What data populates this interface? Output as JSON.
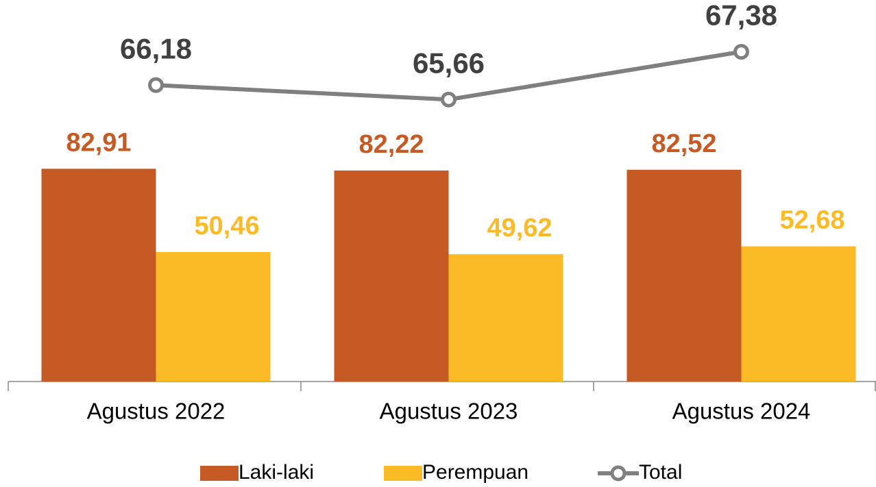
{
  "chart_data": {
    "type": "bar",
    "categories": [
      "Agustus 2022",
      "Agustus 2023",
      "Agustus 2024"
    ],
    "series": [
      {
        "name": "Laki-laki",
        "color": "#c55a24",
        "values": [
          82.91,
          82.22,
          82.52
        ],
        "value_labels": [
          "82,91",
          "82,22",
          "82,52"
        ]
      },
      {
        "name": "Perempuan",
        "color": "#fbbb26",
        "values": [
          50.46,
          49.62,
          52.68
        ],
        "value_labels": [
          "50,46",
          "49,62",
          "52,68"
        ]
      },
      {
        "name": "Total",
        "type": "line",
        "axis": "y2",
        "color": "#7f7f7f",
        "values": [
          66.18,
          65.66,
          67.38
        ],
        "value_labels": [
          "66,18",
          "65,66",
          "67,38"
        ]
      }
    ],
    "ylim": [
      0,
      146
    ],
    "y2lim": [
      55.5,
      69
    ]
  }
}
